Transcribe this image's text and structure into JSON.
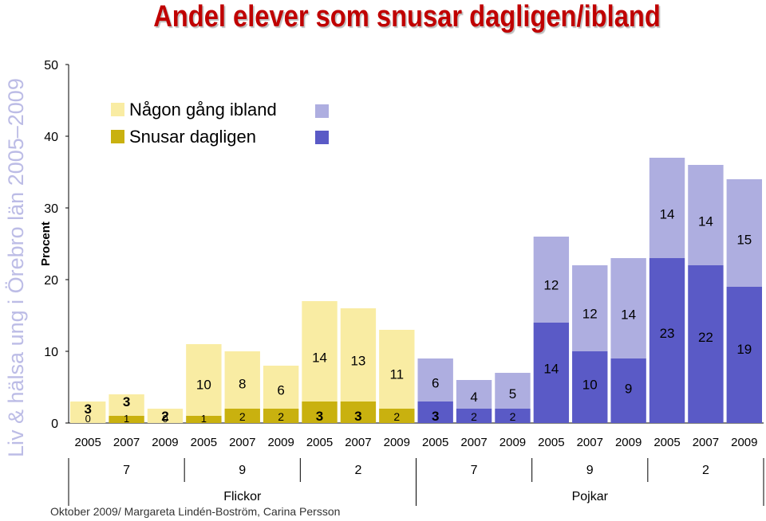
{
  "title": "Andel elever som snusar dagligen/ibland",
  "side_title": "Liv & hälsa ung i Örebro län 2005–2009",
  "credit": "Oktober 2009/ Margareta Lindén-Boström, Carina Persson",
  "colors": {
    "girls_ibland": "#f9eca3",
    "girls_daglig": "#c9b10f",
    "boys_ibland": "#aeaee0",
    "boys_daglig": "#5a5ac6",
    "title": "#c00000"
  },
  "chart_data": {
    "type": "bar",
    "stacked": true,
    "ylabel": "Procent",
    "ylim": [
      0,
      50
    ],
    "yticks": [
      0,
      10,
      20,
      30,
      40,
      50
    ],
    "legend": {
      "placement": "top-left",
      "entries": [
        "Någon gång ibland",
        "Snusar dagligen"
      ]
    },
    "categories": [
      "2005",
      "2007",
      "2009",
      "2005",
      "2007",
      "2009",
      "2005",
      "2007",
      "2009",
      "2005",
      "2007",
      "2009",
      "2005",
      "2007",
      "2009",
      "2005",
      "2007",
      "2009"
    ],
    "grade_labels": [
      "7",
      "9",
      "2",
      "7",
      "9",
      "2"
    ],
    "sex_labels": [
      "Flickor",
      "Pojkar"
    ],
    "series": [
      {
        "name": "Snusar dagligen",
        "values": [
          0,
          1,
          0,
          1,
          2,
          2,
          3,
          3,
          2,
          3,
          2,
          2,
          14,
          10,
          9,
          23,
          22,
          19
        ]
      },
      {
        "name": "Någon gång ibland",
        "values": [
          3,
          3,
          2,
          10,
          8,
          6,
          14,
          13,
          11,
          6,
          4,
          5,
          12,
          12,
          14,
          14,
          14,
          15
        ]
      }
    ]
  }
}
